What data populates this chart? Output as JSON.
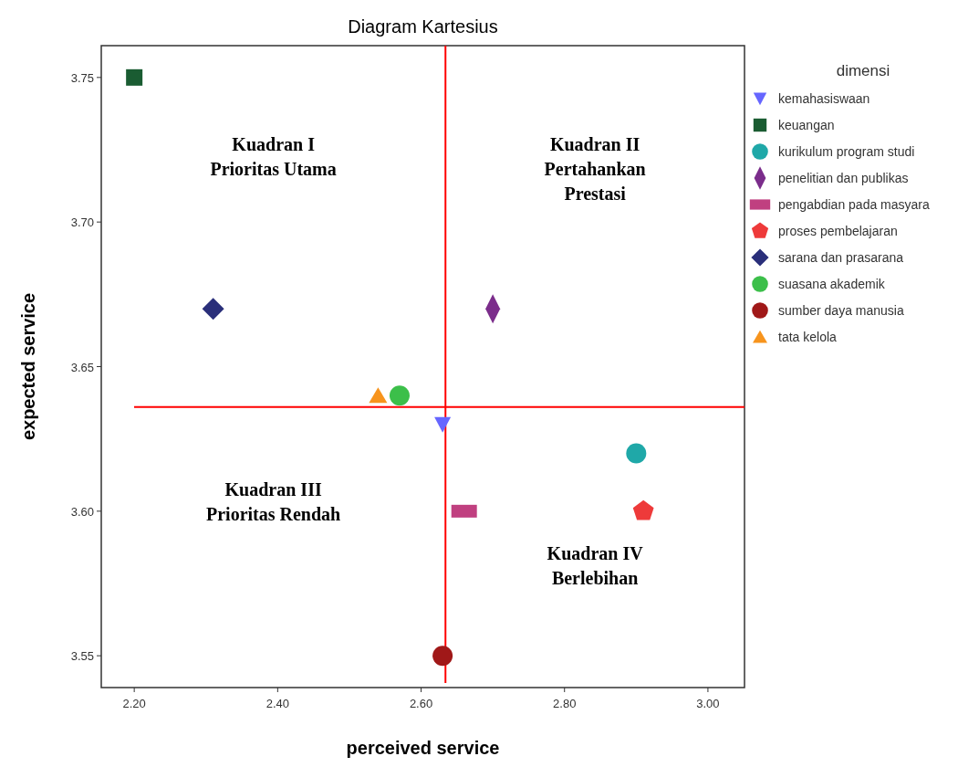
{
  "chart_data": {
    "type": "scatter",
    "title": "Diagram Kartesius",
    "xlabel": "perceived service",
    "ylabel": "expected service",
    "legend_title": "dimensi",
    "legend": "right",
    "grid": false,
    "xlim": [
      2.154,
      3.051
    ],
    "xticks": [
      {
        "value": 2.2,
        "label": "2.20"
      },
      {
        "value": 2.4,
        "label": "2.40"
      },
      {
        "value": 2.6,
        "label": "2.60"
      },
      {
        "value": 2.8,
        "label": "2.80"
      },
      {
        "value": 3.0,
        "label": "3.00"
      }
    ],
    "ylim": [
      3.539,
      3.761
    ],
    "yticks": [
      {
        "value": 3.55,
        "label": "3.55"
      },
      {
        "value": 3.6,
        "label": "3.60"
      },
      {
        "value": 3.65,
        "label": "3.65"
      },
      {
        "value": 3.7,
        "label": "3.70"
      },
      {
        "value": 3.75,
        "label": "3.75"
      }
    ],
    "series": [
      {
        "name": "kemahasiswaan",
        "color": "#6666ff",
        "marker": "triangle-down",
        "x": [
          2.63
        ],
        "values": [
          3.63
        ]
      },
      {
        "name": "keuangan",
        "color": "#1a5c32",
        "marker": "square",
        "x": [
          2.2
        ],
        "values": [
          3.75
        ]
      },
      {
        "name": "kurikulum program studi",
        "color": "#1fa8a8",
        "marker": "circle",
        "x": [
          2.9
        ],
        "values": [
          3.62
        ]
      },
      {
        "name": "penelitian dan publikas",
        "color": "#7b2d8b",
        "marker": "diamond",
        "x": [
          2.7
        ],
        "values": [
          3.67
        ]
      },
      {
        "name": "pengabdian pada masyara",
        "color": "#c04080",
        "marker": "rect",
        "x": [
          2.66
        ],
        "values": [
          3.6
        ]
      },
      {
        "name": "proses pembelajaran",
        "color": "#ee3a3a",
        "x": [
          2.91
        ],
        "values": [
          3.6
        ]
      },
      {
        "name": "sarana dan prasarana",
        "color": "#2a2f7a",
        "marker": "diamond-wide",
        "x": [
          2.31
        ],
        "values": [
          3.67
        ]
      },
      {
        "name": "suasana akademik",
        "color": "#3cbf4a",
        "marker": "circle",
        "x": [
          2.57
        ],
        "values": [
          3.64
        ]
      },
      {
        "name": "sumber daya manusia",
        "color": "#a01818",
        "marker": "circle",
        "x": [
          2.63
        ],
        "values": [
          3.55
        ]
      },
      {
        "name": "tata kelola",
        "color": "#f7941d",
        "marker": "triangle",
        "x": [
          2.54
        ],
        "values": [
          3.64
        ]
      }
    ],
    "ref_lines": [
      {
        "axis": "x",
        "value": 2.634,
        "color": "#ff0000"
      },
      {
        "axis": "y",
        "value": 3.636,
        "color": "#ff0000"
      }
    ],
    "annotations": [
      "Kuadran I\nPrioritas Utama",
      "Kuadran II\nPertahankan\nPrestasi",
      "Kuadran III\nPrioritas Rendah",
      "Kuadran IV\nBerlebihan"
    ]
  }
}
